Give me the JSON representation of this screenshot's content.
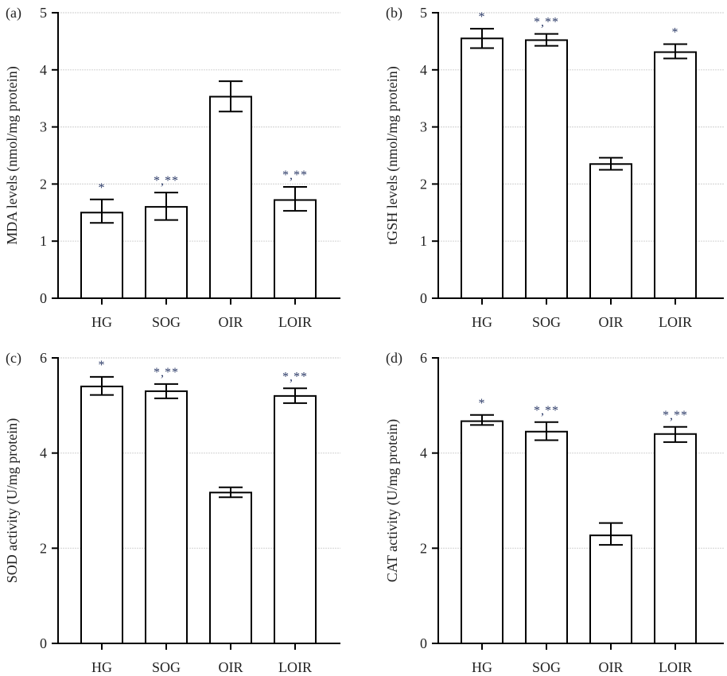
{
  "chart_data": [
    {
      "type": "bar",
      "panel_label": "(a)",
      "ylabel": "MDA levels (nmol/mg protein)",
      "xlabel": "",
      "categories": [
        "HG",
        "SOG",
        "OIR",
        "LOIR"
      ],
      "values": [
        1.5,
        1.6,
        3.53,
        1.72
      ],
      "error_low": [
        1.32,
        1.37,
        3.27,
        1.53
      ],
      "error_high": [
        1.73,
        1.85,
        3.8,
        1.95
      ],
      "significance": [
        "*",
        "*,**",
        "",
        "*,**"
      ],
      "ylim": [
        0,
        5
      ],
      "yticks": [
        0,
        1,
        2,
        3,
        4,
        5
      ],
      "grid": true
    },
    {
      "type": "bar",
      "panel_label": "(b)",
      "ylabel": "tGSH levels (nmol/mg protein)",
      "xlabel": "",
      "categories": [
        "HG",
        "SOG",
        "OIR",
        "LOIR"
      ],
      "values": [
        4.55,
        4.52,
        2.35,
        4.31
      ],
      "error_low": [
        4.38,
        4.42,
        2.25,
        4.2
      ],
      "error_high": [
        4.72,
        4.63,
        2.46,
        4.45
      ],
      "significance": [
        "*",
        "*,**",
        "",
        "*"
      ],
      "ylim": [
        0,
        5
      ],
      "yticks": [
        0,
        1,
        2,
        3,
        4,
        5
      ],
      "grid": true
    },
    {
      "type": "bar",
      "panel_label": "(c)",
      "ylabel": "SOD activity (U/mg protein)",
      "xlabel": "",
      "categories": [
        "HG",
        "SOG",
        "OIR",
        "LOIR"
      ],
      "values": [
        5.4,
        5.3,
        3.17,
        5.2
      ],
      "error_low": [
        5.22,
        5.15,
        3.07,
        5.05
      ],
      "error_high": [
        5.6,
        5.45,
        3.28,
        5.36
      ],
      "significance": [
        "*",
        "*,**",
        "",
        "*,**"
      ],
      "ylim": [
        0,
        6
      ],
      "yticks": [
        0,
        2,
        4,
        6
      ],
      "grid": true
    },
    {
      "type": "bar",
      "panel_label": "(d)",
      "ylabel": "CAT activity (U/mg protein)",
      "xlabel": "",
      "categories": [
        "HG",
        "SOG",
        "OIR",
        "LOIR"
      ],
      "values": [
        4.67,
        4.45,
        2.27,
        4.4
      ],
      "error_low": [
        4.59,
        4.27,
        2.07,
        4.23
      ],
      "error_high": [
        4.8,
        4.65,
        2.53,
        4.55
      ],
      "significance": [
        "*",
        "*,**",
        "",
        "*,**"
      ],
      "ylim": [
        0,
        6
      ],
      "yticks": [
        0,
        2,
        4,
        6
      ],
      "grid": true
    }
  ],
  "colors": {
    "bar_fill": "#ffffff",
    "bar_stroke": "#000000",
    "grid": "#d8d8d8",
    "significance": "#2b3a67"
  }
}
